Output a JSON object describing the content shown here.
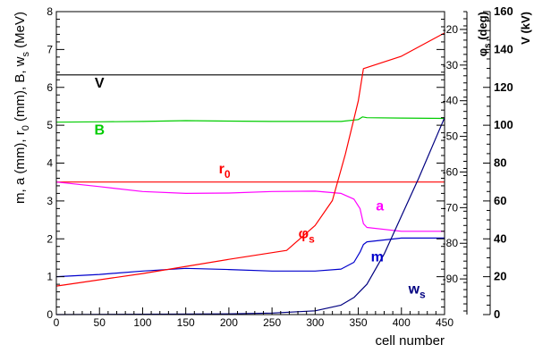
{
  "chart_data": {
    "type": "line",
    "title": "",
    "xlabel": "cell number",
    "xlim": [
      0,
      450
    ],
    "ylim_left": [
      0,
      8
    ],
    "ylabel_left": "m, a (mm), r",
    "ylabel_left_sub": "0",
    "ylabel_left_rest": " (mm), B, w",
    "ylabel_left_sub2": "s",
    "ylabel_left_end": " (MeV)",
    "ylim_phi": [
      -100,
      -15
    ],
    "ylabel_phi": "φ",
    "ylabel_phi_sub": "s",
    "ylabel_phi_rest": " (deg)",
    "ylim_v": [
      0,
      160
    ],
    "ylabel_v": "V (kV)",
    "x_ticks": [
      0,
      50,
      100,
      150,
      200,
      250,
      300,
      350,
      400,
      450
    ],
    "y_left_ticks": [
      0,
      1,
      2,
      3,
      4,
      5,
      6,
      7,
      8
    ],
    "y_phi_ticks": [
      -90,
      -80,
      -70,
      -60,
      -50,
      -40,
      -30,
      -20
    ],
    "y_v_ticks": [
      0,
      20,
      40,
      60,
      80,
      100,
      120,
      140,
      160
    ],
    "grid": false,
    "legend": "inline labels",
    "series": [
      {
        "name": "V",
        "label_sub": "",
        "color": "#000000",
        "axis": "left",
        "x": [
          0,
          450
        ],
        "y": [
          6.33,
          6.33
        ],
        "label_at": [
          50,
          6.0
        ]
      },
      {
        "name": "B",
        "label_sub": "",
        "color": "#00cc00",
        "axis": "left",
        "x": [
          0,
          50,
          100,
          150,
          200,
          250,
          300,
          330,
          350,
          355,
          360,
          400,
          450
        ],
        "y": [
          5.08,
          5.09,
          5.1,
          5.12,
          5.11,
          5.1,
          5.1,
          5.1,
          5.15,
          5.22,
          5.2,
          5.19,
          5.18
        ],
        "label_at": [
          50,
          4.75
        ]
      },
      {
        "name": "r",
        "label_sub": "0",
        "color": "#ff0000",
        "axis": "left",
        "x": [
          0,
          450
        ],
        "y": [
          3.5,
          3.5
        ],
        "label_at": [
          195,
          3.73
        ]
      },
      {
        "name": "a",
        "label_sub": "",
        "color": "#ff00ff",
        "axis": "left",
        "x": [
          0,
          50,
          100,
          150,
          200,
          250,
          300,
          330,
          345,
          352,
          356,
          360,
          400,
          450
        ],
        "y": [
          3.5,
          3.38,
          3.25,
          3.2,
          3.21,
          3.25,
          3.26,
          3.2,
          3.05,
          2.8,
          2.4,
          2.3,
          2.2,
          2.2
        ],
        "label_at": [
          375,
          2.75
        ]
      },
      {
        "name": "m",
        "label_sub": "",
        "color": "#0000cc",
        "axis": "left",
        "x": [
          0,
          50,
          100,
          150,
          200,
          250,
          300,
          330,
          345,
          352,
          356,
          360,
          400,
          450
        ],
        "y": [
          1.0,
          1.06,
          1.15,
          1.22,
          1.19,
          1.15,
          1.15,
          1.2,
          1.38,
          1.65,
          1.85,
          1.92,
          2.02,
          2.02
        ],
        "label_at": [
          372,
          1.4
        ]
      },
      {
        "name": "w",
        "label_sub": "s",
        "color": "#000080",
        "axis": "left",
        "x": [
          0,
          100,
          200,
          250,
          300,
          330,
          345,
          360,
          380,
          400,
          420,
          450
        ],
        "y": [
          0.0,
          0.01,
          0.02,
          0.04,
          0.1,
          0.25,
          0.45,
          0.8,
          1.6,
          2.6,
          3.6,
          5.2
        ],
        "label_at": [
          418,
          0.55
        ]
      },
      {
        "name": "φ",
        "label_sub": "s",
        "color": "#ff0000",
        "axis": "phi",
        "x": [
          0,
          100,
          200,
          267,
          300,
          320,
          335,
          350,
          356,
          400,
          450
        ],
        "y": [
          -92,
          -88.5,
          -84.5,
          -82,
          -75,
          -68,
          -55,
          -40,
          -31,
          -27.5,
          -21
        ],
        "label_at": [
          290,
          -78.5
        ]
      }
    ]
  }
}
